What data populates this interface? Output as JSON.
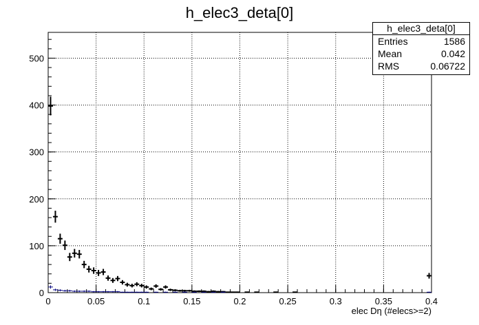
{
  "chart_data": {
    "type": "histogram",
    "title": "h_elec3_deta[0]",
    "xlabel": "elec Dη (#elecs>=2)",
    "ylabel": "",
    "xlim": [
      0,
      0.4
    ],
    "ylim": [
      0,
      555
    ],
    "x_ticks": [
      "0",
      "0.05",
      "0.1",
      "0.15",
      "0.2",
      "0.25",
      "0.3",
      "0.35",
      "0.4"
    ],
    "y_ticks": [
      "0",
      "100",
      "200",
      "300",
      "400",
      "500"
    ],
    "grid": true,
    "bin_width": 0.005,
    "series": [
      {
        "color": "#000000",
        "points": [
          {
            "x": 0.0025,
            "y": 398
          },
          {
            "x": 0.0075,
            "y": 162
          },
          {
            "x": 0.0125,
            "y": 115
          },
          {
            "x": 0.0175,
            "y": 101
          },
          {
            "x": 0.0225,
            "y": 76
          },
          {
            "x": 0.0275,
            "y": 84
          },
          {
            "x": 0.0325,
            "y": 82
          },
          {
            "x": 0.0375,
            "y": 60
          },
          {
            "x": 0.0425,
            "y": 50
          },
          {
            "x": 0.0475,
            "y": 47
          },
          {
            "x": 0.0525,
            "y": 42
          },
          {
            "x": 0.0575,
            "y": 44
          },
          {
            "x": 0.0625,
            "y": 31
          },
          {
            "x": 0.0675,
            "y": 26
          },
          {
            "x": 0.0725,
            "y": 30
          },
          {
            "x": 0.0775,
            "y": 22
          },
          {
            "x": 0.0825,
            "y": 17
          },
          {
            "x": 0.0875,
            "y": 15
          },
          {
            "x": 0.0925,
            "y": 18
          },
          {
            "x": 0.0975,
            "y": 15
          },
          {
            "x": 0.1025,
            "y": 12
          },
          {
            "x": 0.1075,
            "y": 8
          },
          {
            "x": 0.1125,
            "y": 14
          },
          {
            "x": 0.1175,
            "y": 7
          },
          {
            "x": 0.1225,
            "y": 12
          },
          {
            "x": 0.1275,
            "y": 6
          },
          {
            "x": 0.1325,
            "y": 5
          },
          {
            "x": 0.1375,
            "y": 4
          },
          {
            "x": 0.1425,
            "y": 4
          },
          {
            "x": 0.1475,
            "y": 4
          },
          {
            "x": 0.1525,
            "y": 3
          },
          {
            "x": 0.1575,
            "y": 3
          },
          {
            "x": 0.1625,
            "y": 3
          },
          {
            "x": 0.1675,
            "y": 2
          },
          {
            "x": 0.1725,
            "y": 3
          },
          {
            "x": 0.1775,
            "y": 2
          },
          {
            "x": 0.1825,
            "y": 2
          },
          {
            "x": 0.1875,
            "y": 1
          },
          {
            "x": 0.1925,
            "y": 1
          },
          {
            "x": 0.1975,
            "y": 1
          },
          {
            "x": 0.2075,
            "y": 1
          },
          {
            "x": 0.2175,
            "y": 1
          },
          {
            "x": 0.2375,
            "y": 1
          },
          {
            "x": 0.2575,
            "y": 1
          },
          {
            "x": 0.3975,
            "y": 36
          }
        ]
      },
      {
        "color": "#00007f",
        "points": [
          {
            "x": 0.0025,
            "y": 12
          },
          {
            "x": 0.0075,
            "y": 6
          },
          {
            "x": 0.0125,
            "y": 5
          },
          {
            "x": 0.0175,
            "y": 4
          },
          {
            "x": 0.0225,
            "y": 4
          },
          {
            "x": 0.0275,
            "y": 3
          },
          {
            "x": 0.0325,
            "y": 3
          },
          {
            "x": 0.0375,
            "y": 3
          },
          {
            "x": 0.0425,
            "y": 3
          },
          {
            "x": 0.0475,
            "y": 2
          },
          {
            "x": 0.0525,
            "y": 2
          },
          {
            "x": 0.0575,
            "y": 2
          },
          {
            "x": 0.0625,
            "y": 2
          },
          {
            "x": 0.0675,
            "y": 2
          },
          {
            "x": 0.0725,
            "y": 2
          },
          {
            "x": 0.0775,
            "y": 1
          },
          {
            "x": 0.0825,
            "y": 1
          },
          {
            "x": 0.0875,
            "y": 1
          },
          {
            "x": 0.0925,
            "y": 1
          },
          {
            "x": 0.0975,
            "y": 1
          },
          {
            "x": 0.1025,
            "y": 1
          },
          {
            "x": 0.1125,
            "y": 1
          },
          {
            "x": 0.1225,
            "y": 1
          },
          {
            "x": 0.1325,
            "y": 1
          },
          {
            "x": 0.1425,
            "y": 1
          },
          {
            "x": 0.1525,
            "y": 1
          },
          {
            "x": 0.1625,
            "y": 1
          },
          {
            "x": 0.1725,
            "y": 1
          },
          {
            "x": 0.1825,
            "y": 1
          },
          {
            "x": 0.3975,
            "y": 1
          }
        ]
      }
    ]
  },
  "stats_box": {
    "title": "h_elec3_deta[0]",
    "entries_label": "Entries",
    "entries_value": "1586",
    "mean_label": "Mean",
    "mean_value": "0.042",
    "rms_label": "RMS",
    "rms_value": "0.06722"
  }
}
